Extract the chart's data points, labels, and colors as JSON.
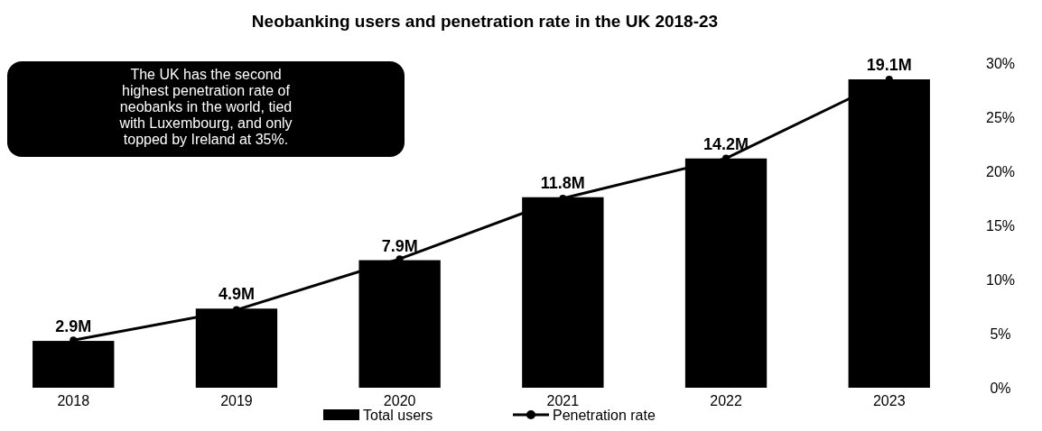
{
  "chart_data": {
    "type": "bar",
    "title": "Neobanking users and penetration rate in the UK 2018-23",
    "categories": [
      "2018",
      "2019",
      "2020",
      "2021",
      "2022",
      "2023"
    ],
    "series": [
      {
        "name": "Total users",
        "color": "#000000",
        "values": [
          2.9,
          4.9,
          7.9,
          11.8,
          14.2,
          19.1
        ],
        "value_labels": [
          "2.9M",
          "4.9M",
          "7.9M",
          "11.8M",
          "14.2M",
          "19.1M"
        ]
      },
      {
        "name": "Penetration rate",
        "type": "line",
        "axis": "y2",
        "color": "#000000",
        "values": [
          4.4,
          7.2,
          11.9,
          17.5,
          21.2,
          28.5
        ]
      }
    ],
    "y2lim": [
      0,
      30
    ],
    "y2ticks": [
      {
        "value": 0,
        "label": "0%"
      },
      {
        "value": 5,
        "label": "5%"
      },
      {
        "value": 10,
        "label": "10%"
      },
      {
        "value": 15,
        "label": "15%"
      },
      {
        "value": 20,
        "label": "20%"
      },
      {
        "value": 25,
        "label": "25%"
      },
      {
        "value": 30,
        "label": "30%"
      }
    ],
    "marker": "circle",
    "line_style": "solid",
    "legend": "bottom",
    "annotations": [
      "The UK has the second highest penetration rate of neobanks in the world, tied with Luxembourg, and only topped by Ireland at 35%."
    ]
  }
}
